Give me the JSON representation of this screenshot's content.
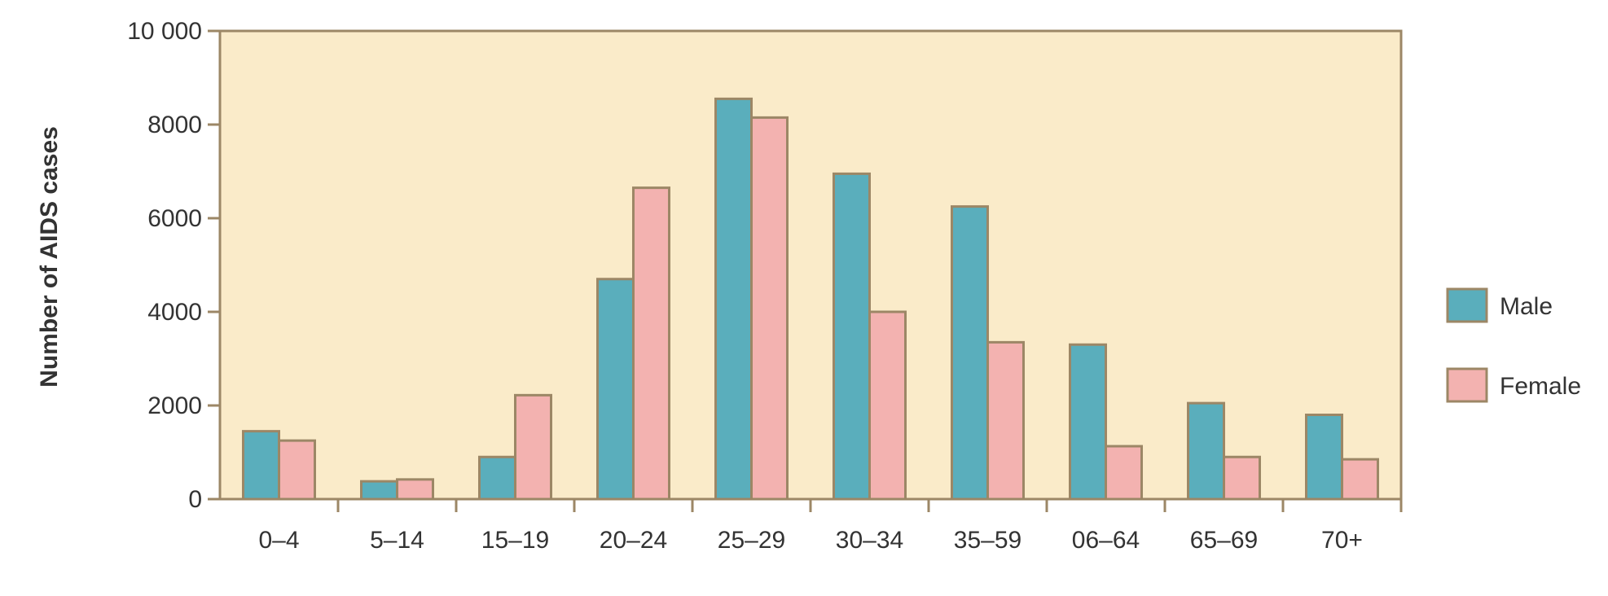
{
  "chart_data": {
    "type": "bar",
    "title": "",
    "xlabel": "",
    "ylabel": "Number of AIDS cases",
    "categories": [
      "0–4",
      "5–14",
      "15–19",
      "20–24",
      "25–29",
      "30–34",
      "35–59",
      "06–64",
      "65–69",
      "70+"
    ],
    "series": [
      {
        "name": "Male",
        "color": "#5aaebc",
        "values": [
          1450,
          380,
          900,
          4700,
          8550,
          6950,
          6250,
          3300,
          2050,
          1800
        ]
      },
      {
        "name": "Female",
        "color": "#f3b2b0",
        "values": [
          1250,
          420,
          2220,
          6650,
          8150,
          4000,
          3350,
          1130,
          900,
          850
        ]
      }
    ],
    "ylim": [
      0,
      10000
    ],
    "yticks": [
      0,
      2000,
      4000,
      6000,
      8000,
      10000
    ],
    "ytick_labels": [
      "0",
      "2000",
      "4000",
      "6000",
      "8000",
      "10 000"
    ],
    "grid": false,
    "legend_position": "right",
    "plot_background": "#faebc9",
    "frame_color": "#9c8766"
  }
}
